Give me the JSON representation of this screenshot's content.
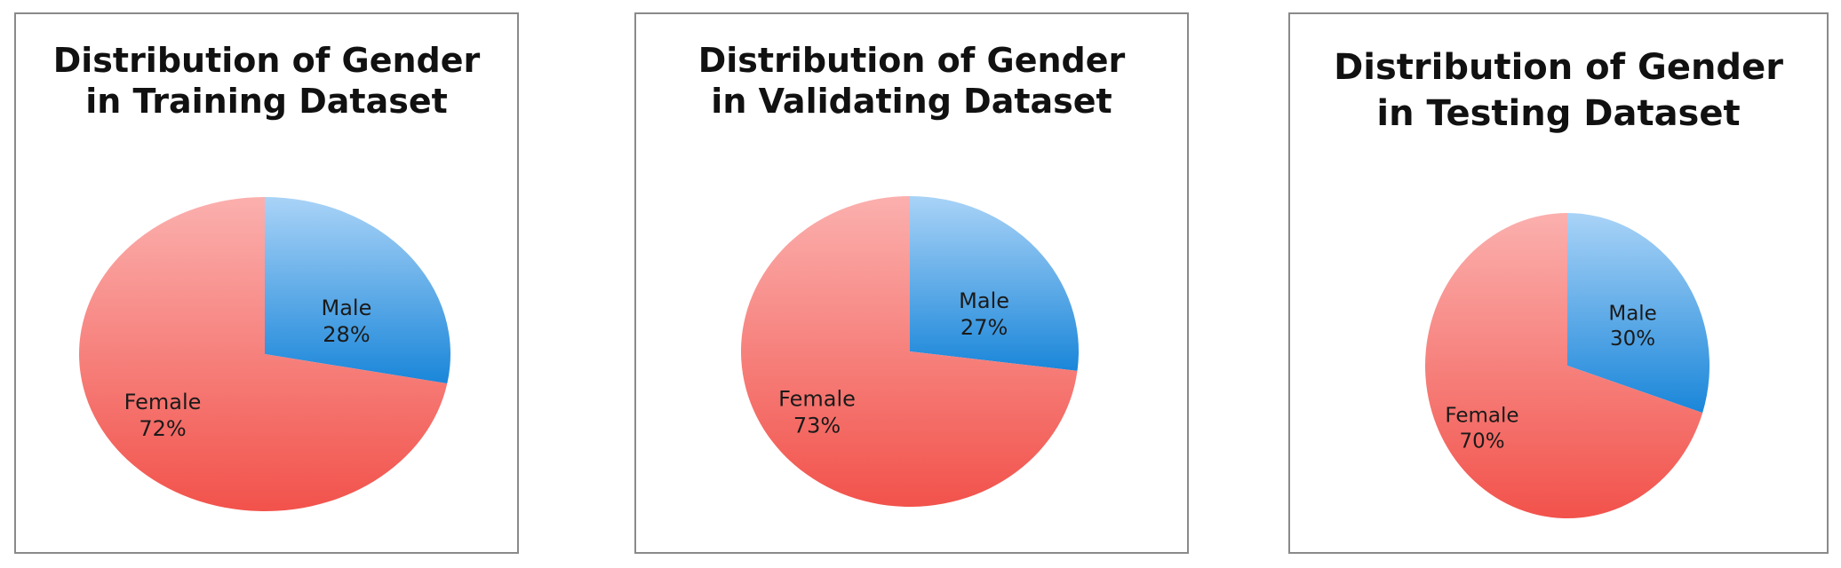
{
  "colors": {
    "male_light": "#a9d3f7",
    "male_dark": "#1a86d9",
    "female_light": "#fbb0ae",
    "female_dark": "#f2524b"
  },
  "chart_data": [
    {
      "type": "pie",
      "title": "Distribution of Gender\nin Training Dataset",
      "slices": [
        {
          "label": "Male",
          "value": 28,
          "value_label": "28%"
        },
        {
          "label": "Female",
          "value": 72,
          "value_label": "72%"
        }
      ]
    },
    {
      "type": "pie",
      "title": "Distribution of Gender\nin Validating Dataset",
      "slices": [
        {
          "label": "Male",
          "value": 27,
          "value_label": "27%"
        },
        {
          "label": "Female",
          "value": 73,
          "value_label": "73%"
        }
      ]
    },
    {
      "type": "pie",
      "title": "Distribution of Gender\nin Testing Dataset",
      "slices": [
        {
          "label": "Male",
          "value": 30,
          "value_label": "30%"
        },
        {
          "label": "Female",
          "value": 70,
          "value_label": "70%"
        }
      ]
    }
  ]
}
